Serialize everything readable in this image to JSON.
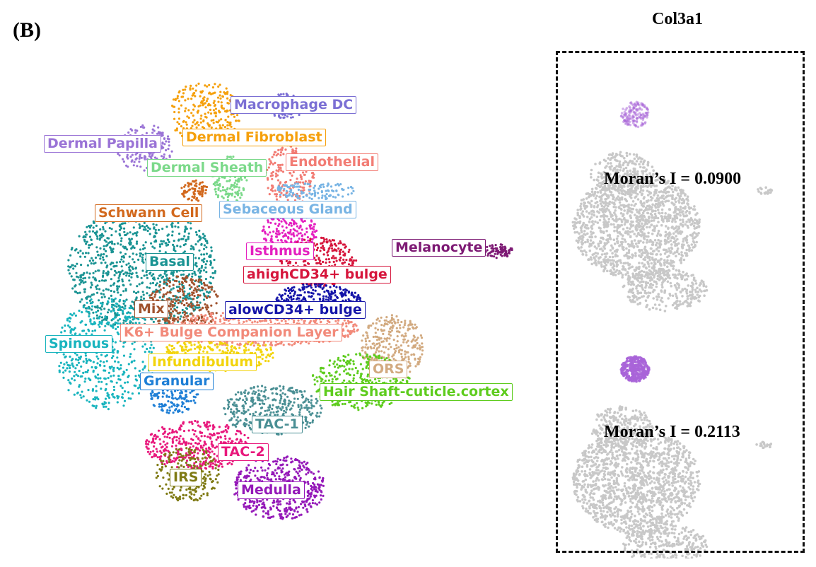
{
  "panel_label": "(B)",
  "gene": "Col3a1",
  "clusters": [
    {
      "name": "Macrophage DC",
      "color": "#7b6fd4"
    },
    {
      "name": "Dermal Papilla",
      "color": "#9a73d6"
    },
    {
      "name": "Dermal Fibroblast",
      "color": "#f5a00c"
    },
    {
      "name": "Dermal Sheath",
      "color": "#7bd98a"
    },
    {
      "name": "Endothelial",
      "color": "#f27c74"
    },
    {
      "name": "Schwann Cell",
      "color": "#d2691e"
    },
    {
      "name": "Sebaceous Gland",
      "color": "#78b4e4"
    },
    {
      "name": "Melanocyte",
      "color": "#7d1a74"
    },
    {
      "name": "Isthmus",
      "color": "#e41fbf"
    },
    {
      "name": "Basal",
      "color": "#1a9393"
    },
    {
      "name": "ahighCD34+ bulge",
      "color": "#d6163c"
    },
    {
      "name": "Mix",
      "color": "#a0522d"
    },
    {
      "name": "alowCD34+ bulge",
      "color": "#1414a8"
    },
    {
      "name": "K6+ Bulge Companion Layer",
      "color": "#f28a7a"
    },
    {
      "name": "Spinous",
      "color": "#18b4be"
    },
    {
      "name": "Infundibulum",
      "color": "#f2d40c"
    },
    {
      "name": "ORS",
      "color": "#d2aa80"
    },
    {
      "name": "Granular",
      "color": "#1e7fd6"
    },
    {
      "name": "Hair Shaft-cuticle.cortex",
      "color": "#5ecc1e"
    },
    {
      "name": "TAC-1",
      "color": "#4a8f94"
    },
    {
      "name": "TAC-2",
      "color": "#e8187c"
    },
    {
      "name": "IRS",
      "color": "#7f7a14"
    },
    {
      "name": "Medulla",
      "color": "#9418b8"
    }
  ],
  "feature_plots": [
    {
      "label": "Moran’s I = 0.0900"
    },
    {
      "label": "Moran’s I = 0.2113"
    }
  ],
  "colors": {
    "background_cells": "#c8c8c8",
    "expression": "#a864d8"
  }
}
